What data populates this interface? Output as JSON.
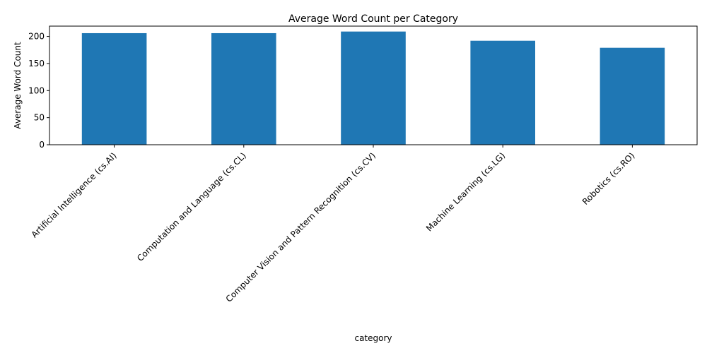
{
  "chart_data": {
    "type": "bar",
    "title": "Average Word Count per Category",
    "xlabel": "category",
    "ylabel": "Average Word Count",
    "categories": [
      "Artificial Intelligence (cs.AI)",
      "Computation and Language (cs.CL)",
      "Computer Vision and Pattern Recognition (cs.CV)",
      "Machine Learning (cs.LG)",
      "Robotics (cs.RO)"
    ],
    "values": [
      206,
      206,
      209,
      192,
      179
    ],
    "ylim": [
      0,
      219
    ],
    "yticks": [
      0,
      50,
      100,
      150,
      200
    ],
    "bar_color": "#1f77b4",
    "grid": false,
    "legend": "none"
  }
}
